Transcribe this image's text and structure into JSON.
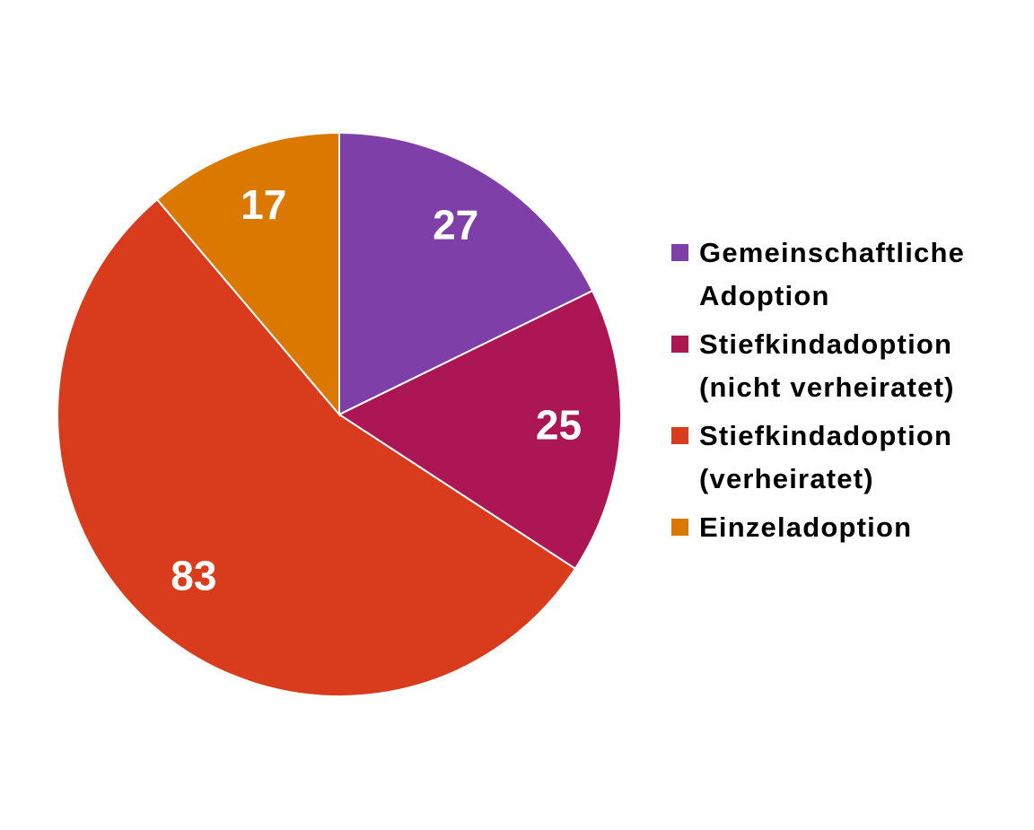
{
  "chart_data": {
    "type": "pie",
    "categories": [
      "Gemeinschaftliche Adoption",
      "Stiefkindadoption (nicht verheiratet)",
      "Stiefkindadoption (verheiratet)",
      "Einzeladoption"
    ],
    "values": [
      27,
      25,
      83,
      17
    ],
    "colors": [
      "#7f3fa8",
      "#ad1654",
      "#d93c1c",
      "#db7800"
    ],
    "legend": "right"
  }
}
